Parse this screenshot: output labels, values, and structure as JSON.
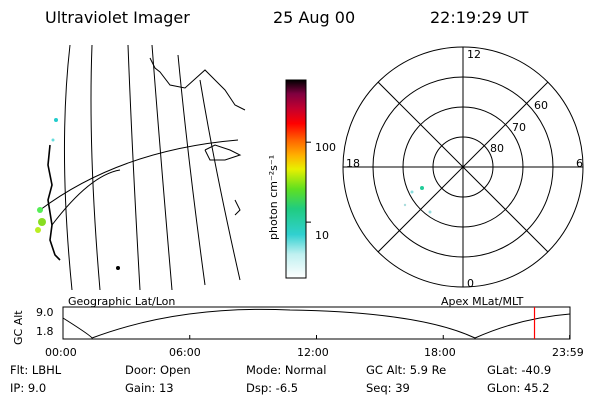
{
  "header": {
    "instrument": "Ultraviolet Imager",
    "date": "25 Aug 00",
    "time": "22:19:29 UT"
  },
  "colorbar": {
    "label": "photon cm⁻²s⁻¹",
    "ticks": [
      {
        "value": 100,
        "label": "100"
      },
      {
        "value": 10,
        "label": "10"
      }
    ],
    "range": [
      2,
      600
    ],
    "scale": "log"
  },
  "geographic_panel": {
    "label": "Geographic Lat/Lon"
  },
  "apex_panel": {
    "label": "Apex MLat/MLT",
    "mlt_labels": [
      {
        "hour": 12,
        "label": "12"
      },
      {
        "hour": 6,
        "label": "6"
      },
      {
        "hour": 0,
        "label": "0"
      },
      {
        "hour": 18,
        "label": "18"
      }
    ],
    "lat_labels": [
      {
        "lat": 60,
        "label": "60"
      },
      {
        "lat": 70,
        "label": "70"
      },
      {
        "lat": 80,
        "label": "80"
      }
    ]
  },
  "altitude_plot": {
    "ylabel": "GC Alt",
    "yticks": [
      {
        "value": 9.0,
        "label": "9.0"
      },
      {
        "value": 1.8,
        "label": "1.8"
      }
    ],
    "xticks": [
      {
        "hour": 0,
        "label": "00:00"
      },
      {
        "hour": 6,
        "label": "06:00"
      },
      {
        "hour": 12,
        "label": "12:00"
      },
      {
        "hour": 18,
        "label": "18:00"
      },
      {
        "hour": 23.983,
        "label": "23:59"
      }
    ],
    "current_hour": 22.32,
    "marker_color": "#ff0000"
  },
  "info": {
    "flt": "Flt: LBHL",
    "ip": "IP:  9.0",
    "door": "Door: Open",
    "gain": "Gain: 13",
    "mode": "Mode: Normal",
    "dsp": "Dsp:   -6.5",
    "gcalt": "GC Alt: 5.9 Re",
    "seq": "Seq: 39",
    "glat": "GLat: -40.9",
    "glon": "GLon:  45.2"
  }
}
